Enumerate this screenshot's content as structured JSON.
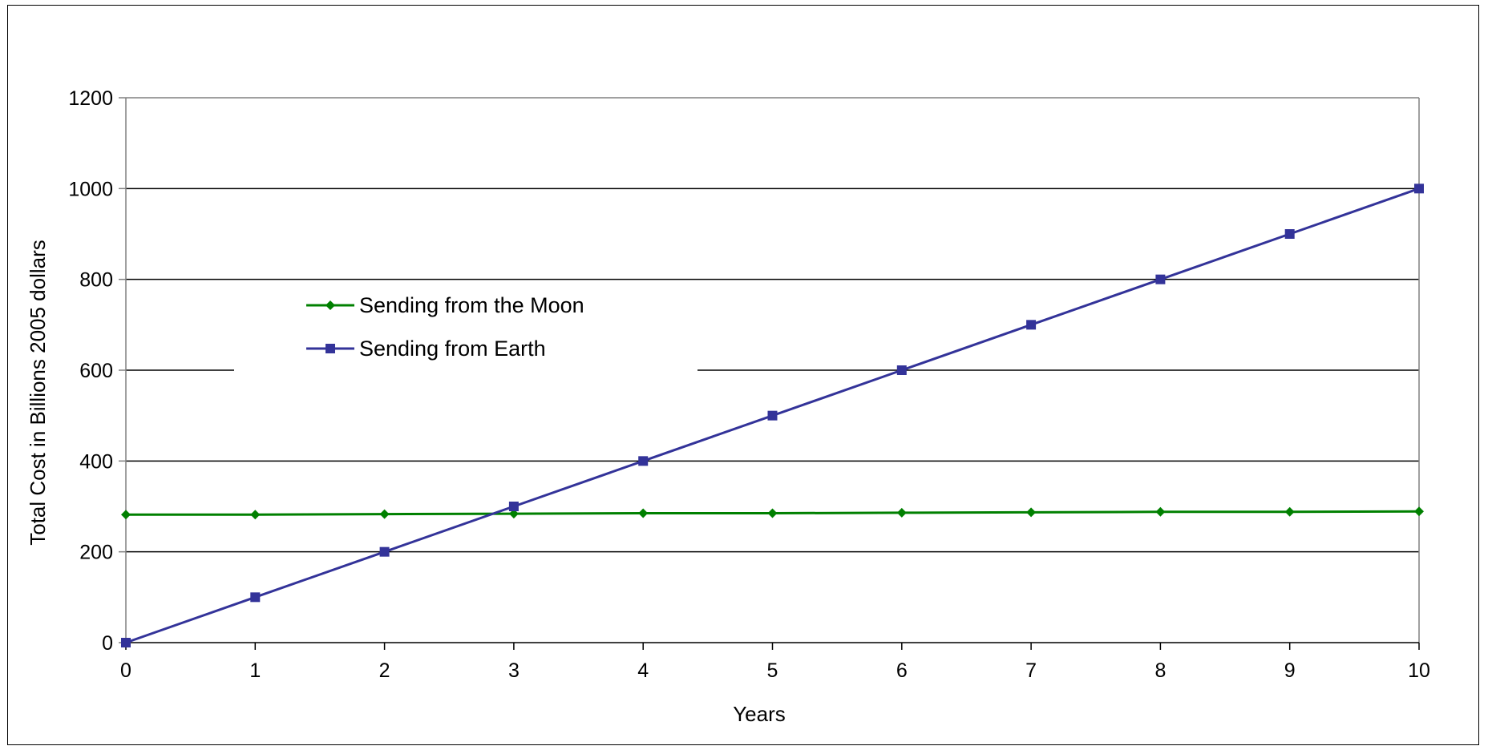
{
  "chart_data": {
    "type": "line",
    "title": "",
    "xlabel": "Years",
    "ylabel": "Total Cost in Billions 2005 dollars",
    "x": [
      0,
      1,
      2,
      3,
      4,
      5,
      6,
      7,
      8,
      9,
      10
    ],
    "xlim": [
      0,
      10
    ],
    "ylim": [
      0,
      1200
    ],
    "x_ticks": [
      "0",
      "1",
      "2",
      "3",
      "4",
      "5",
      "6",
      "7",
      "8",
      "9",
      "10"
    ],
    "y_ticks": [
      "0",
      "200",
      "400",
      "600",
      "800",
      "1000",
      "1200"
    ],
    "grid": "horizontal",
    "legend_position": "upper-left",
    "series": [
      {
        "name": "Sending from the Moon",
        "color": "#008000",
        "marker": "diamond",
        "values": [
          282,
          282,
          283,
          284,
          285,
          285,
          286,
          287,
          288,
          288,
          289
        ]
      },
      {
        "name": "Sending from Earth",
        "color": "#333399",
        "marker": "square",
        "values": [
          0,
          100,
          200,
          300,
          400,
          500,
          600,
          700,
          800,
          900,
          1000
        ]
      }
    ]
  }
}
